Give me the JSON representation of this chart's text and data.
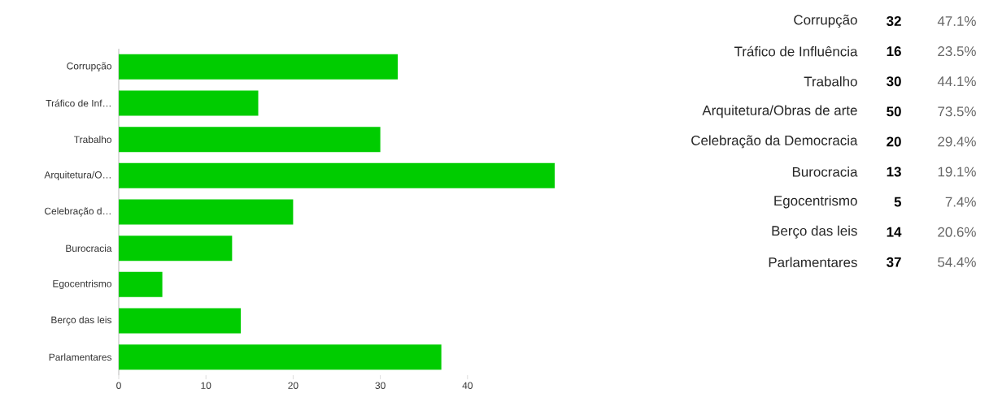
{
  "chart_data": [
    {
      "type": "bar",
      "orientation": "horizontal",
      "categories": [
        "Corrupção",
        "Tráfico de Inf…",
        "Trabalho",
        "Arquitetura/O…",
        "Celebração d…",
        "Burocracia",
        "Egocentrismo",
        "Berço das leis",
        "Parlamentares"
      ],
      "values": [
        32,
        16,
        30,
        50,
        20,
        13,
        5,
        14,
        37
      ],
      "color": "#00cc00",
      "xlim": [
        0,
        50
      ],
      "xticks": [
        0,
        10,
        20,
        30,
        40
      ]
    },
    {
      "type": "other",
      "categories": [
        "Corrupção",
        "Tráfico de Influência",
        "Trabalho",
        "Arquitetura/Obras de arte",
        "Celebração da Democracia",
        "Burocracia",
        "Egocentrismo",
        "Berço das leis",
        "Parlamentares"
      ],
      "data_labels": true,
      "series": [
        {
          "values": [
            32,
            16,
            30,
            50,
            20,
            13,
            5,
            14,
            37
          ]
        },
        {
          "values": [
            47.1,
            23.5,
            44.1,
            73.5,
            29.4,
            19.1,
            7.4,
            20.6,
            54.4
          ],
          "value_labels": [
            "47.1%",
            "23.5%",
            "44.1%",
            "73.5%",
            "29.4%",
            "19.1%",
            "7.4%",
            "20.6%",
            "54.4%"
          ]
        }
      ]
    }
  ]
}
